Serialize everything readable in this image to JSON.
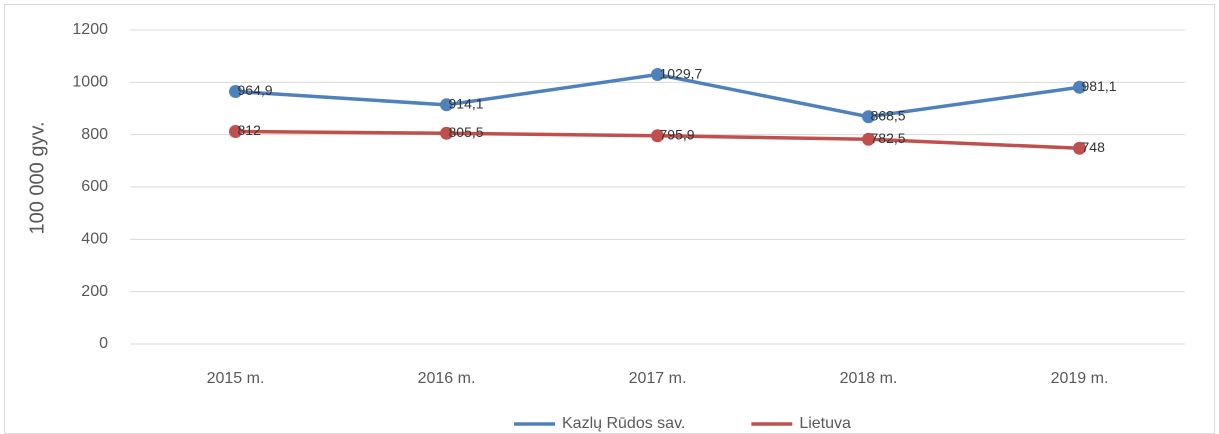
{
  "chart_data": {
    "type": "line",
    "ylabel": "100 000 gyv.",
    "categories": [
      "2015 m.",
      "2016 m.",
      "2017 m.",
      "2018 m.",
      "2019 m."
    ],
    "series": [
      {
        "name": "Kazlų Rūdos sav.",
        "color": "#4f81bd",
        "values": [
          964.9,
          914.1,
          1029.7,
          868.5,
          981.1
        ],
        "value_labels": [
          "964,9",
          "914,1",
          "1029,7",
          "868,5",
          "981,1"
        ]
      },
      {
        "name": "Lietuva",
        "color": "#c0504d",
        "values": [
          812,
          805.5,
          795.9,
          782.5,
          748
        ],
        "value_labels": [
          "812",
          "805,5",
          "795,9",
          "782,5",
          "748"
        ]
      }
    ],
    "ylim": [
      0,
      1200
    ],
    "yticks": [
      0,
      200,
      400,
      600,
      800,
      1000,
      1200
    ],
    "grid": true,
    "legend": "bottom"
  }
}
